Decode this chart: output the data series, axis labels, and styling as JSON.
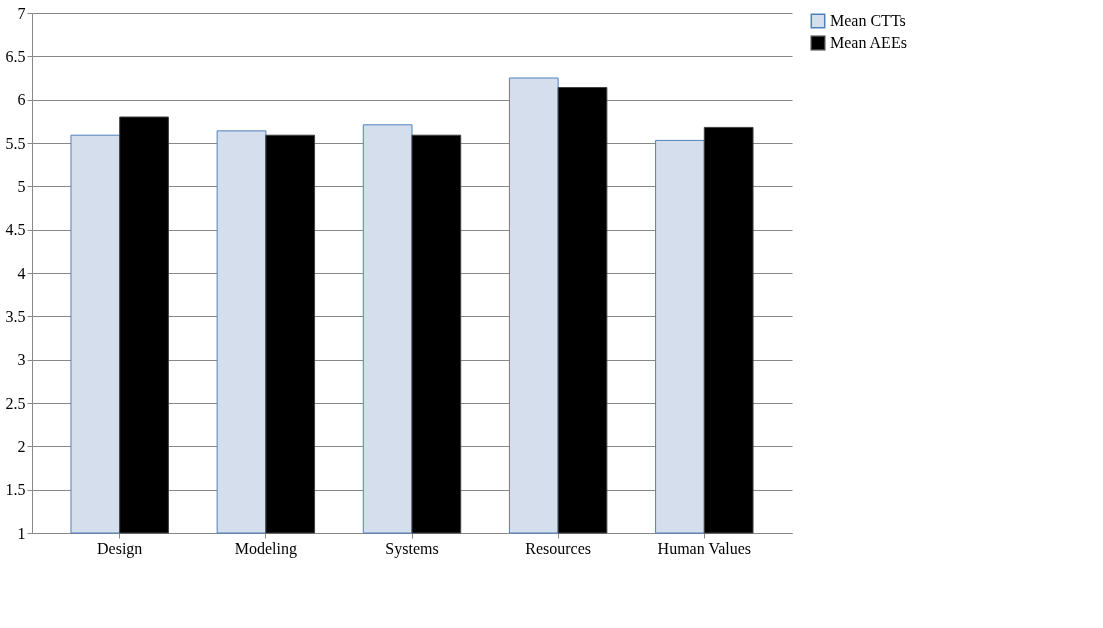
{
  "chart_data": {
    "type": "bar",
    "categories": [
      "Design",
      "Modeling",
      "Systems",
      "Resources",
      "Human Values"
    ],
    "series": [
      {
        "name": "Mean CTTs",
        "color": "#d5deec",
        "values": [
          5.59,
          5.64,
          5.71,
          6.25,
          5.53
        ]
      },
      {
        "name": "Mean AEEs",
        "color": "#000000",
        "values": [
          5.8,
          5.59,
          5.59,
          6.14,
          5.68
        ]
      }
    ],
    "ylim": [
      1,
      7
    ],
    "yticks": [
      1,
      1.5,
      2,
      2.5,
      3,
      3.5,
      4,
      4.5,
      5,
      5.5,
      6,
      6.5,
      7
    ],
    "grid": "y",
    "legend": "right"
  }
}
